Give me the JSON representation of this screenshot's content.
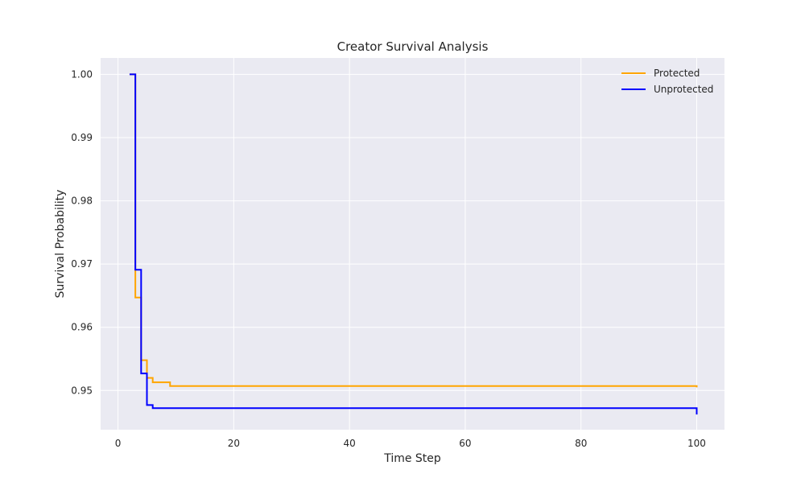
{
  "chart_data": {
    "type": "line",
    "title": "Creator Survival Analysis",
    "xlabel": "Time Step",
    "ylabel": "Survival Probability",
    "xlim": [
      -3,
      104.8
    ],
    "ylim": [
      0.9438,
      1.0026
    ],
    "x_ticks": [
      0,
      20,
      40,
      60,
      80,
      100
    ],
    "y_ticks": [
      0.95,
      0.96,
      0.97,
      0.98,
      0.99,
      1.0
    ],
    "x_tick_labels": [
      "0",
      "20",
      "40",
      "60",
      "80",
      "100"
    ],
    "y_tick_labels": [
      "0.95",
      "0.96",
      "0.97",
      "0.98",
      "0.99",
      "1.00"
    ],
    "grid": true,
    "legend_position": "top-right",
    "step_style": "post",
    "series": [
      {
        "name": "Protected",
        "color": "#FFA500",
        "x": [
          2,
          3,
          4,
          5,
          6,
          9,
          100,
          100
        ],
        "y": [
          1.0,
          0.9647,
          0.9548,
          0.952,
          0.9513,
          0.9507,
          0.9507,
          0.9505
        ]
      },
      {
        "name": "Unprotected",
        "color": "#0000FF",
        "x": [
          2,
          3,
          4,
          5,
          6,
          100,
          100
        ],
        "y": [
          1.0,
          0.9691,
          0.9527,
          0.9477,
          0.9472,
          0.9472,
          0.9462
        ]
      }
    ]
  }
}
